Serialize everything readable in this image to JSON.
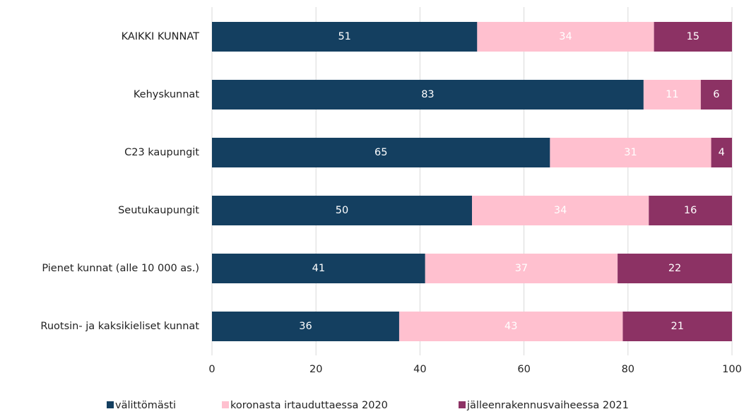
{
  "chart_data": {
    "type": "stacked_barh",
    "categories": [
      "KAIKKI KUNNAT",
      "Kehyskunnat",
      "C23 kaupungit",
      "Seutukaupungit",
      "Pienet kunnat (alle 10 000 as.)",
      "Ruotsin- ja kaksikieliset kunnat"
    ],
    "series": [
      {
        "name": "välittömästi",
        "color": "#143f60",
        "values": [
          51,
          83,
          65,
          50,
          41,
          36
        ]
      },
      {
        "name": "koronasta irtauduttaessa 2020",
        "color": "#ffc0cf",
        "values": [
          34,
          11,
          31,
          34,
          37,
          43
        ]
      },
      {
        "name": "jälleenrakennusvaiheessa 2021",
        "color": "#8c3264",
        "values": [
          15,
          6,
          4,
          16,
          22,
          21
        ]
      }
    ],
    "xlim": [
      0,
      100
    ],
    "xticks": [
      0,
      20,
      40,
      60,
      80,
      100
    ],
    "grid": true,
    "legend": "bottom"
  }
}
